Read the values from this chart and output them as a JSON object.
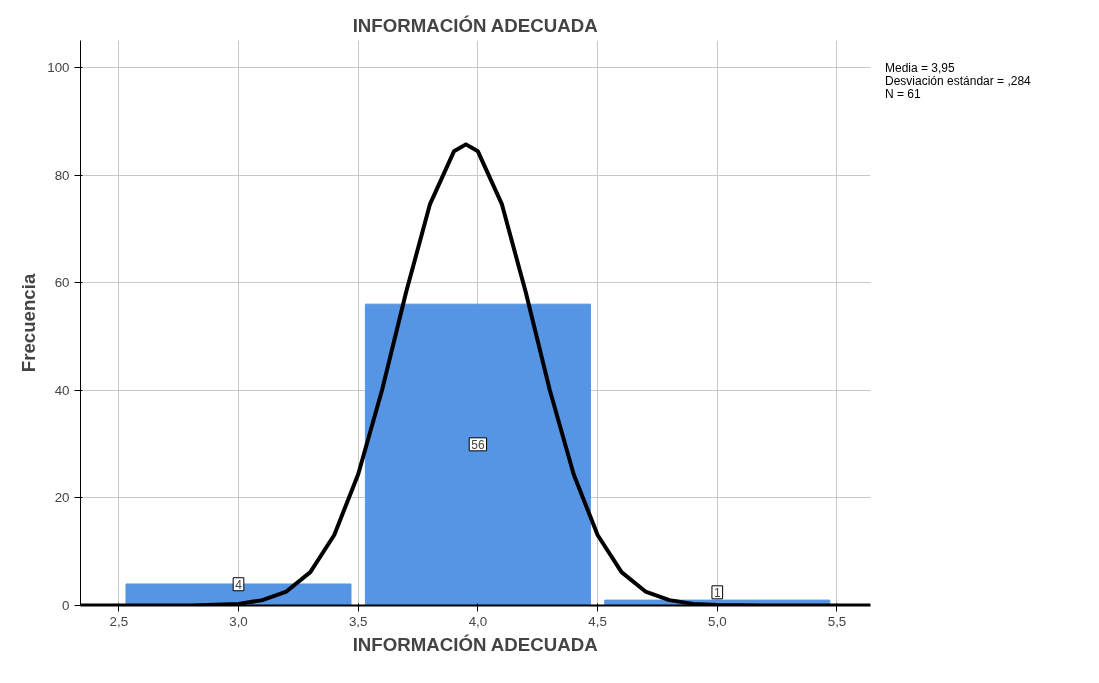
{
  "chart_data": {
    "type": "histogram",
    "title": "INFORMACIÓN ADECUADA",
    "xlabel": "INFORMACIÓN ADECUADA",
    "ylabel": "Frecuencia",
    "bins": [
      2.5,
      3.5,
      4.5,
      5.5
    ],
    "series": [
      {
        "color": "#5595e3",
        "values": [
          4,
          56,
          1
        ],
        "value_labels": [
          "4",
          "56",
          "1"
        ]
      },
      {
        "type": "line",
        "color": "#000000",
        "x": [
          2.34,
          2.6,
          2.8,
          3.0,
          3.1,
          3.2,
          3.3,
          3.4,
          3.5,
          3.6,
          3.7,
          3.8,
          3.9,
          3.95,
          4.0,
          4.1,
          4.2,
          4.3,
          4.4,
          4.5,
          4.6,
          4.7,
          4.8,
          4.9,
          5.0,
          5.2,
          5.64
        ],
        "values": [
          0,
          0,
          0,
          0.3,
          1,
          2.6,
          6.2,
          13.1,
          24.4,
          40.1,
          58.2,
          74.6,
          84.4,
          85.7,
          84.4,
          74.6,
          58.2,
          40.1,
          24.4,
          13.1,
          6.2,
          2.6,
          1,
          0.3,
          0.1,
          0,
          0
        ]
      }
    ],
    "annotations": [
      "Media = 3,95",
      "Desviación estándar = ,284",
      "N = 61"
    ],
    "xlim": [
      2.34,
      5.64
    ],
    "ylim": [
      0,
      105
    ],
    "xticks": [
      {
        "value": 2.5,
        "label": "2,5"
      },
      {
        "value": 3.0,
        "label": "3,0"
      },
      {
        "value": 3.5,
        "label": "3,5"
      },
      {
        "value": 4.0,
        "label": "4,0"
      },
      {
        "value": 4.5,
        "label": "4,5"
      },
      {
        "value": 5.0,
        "label": "5,0"
      },
      {
        "value": 5.5,
        "label": "5,5"
      }
    ],
    "yticks": [
      0,
      20,
      40,
      60,
      80,
      100
    ],
    "grid": true
  }
}
